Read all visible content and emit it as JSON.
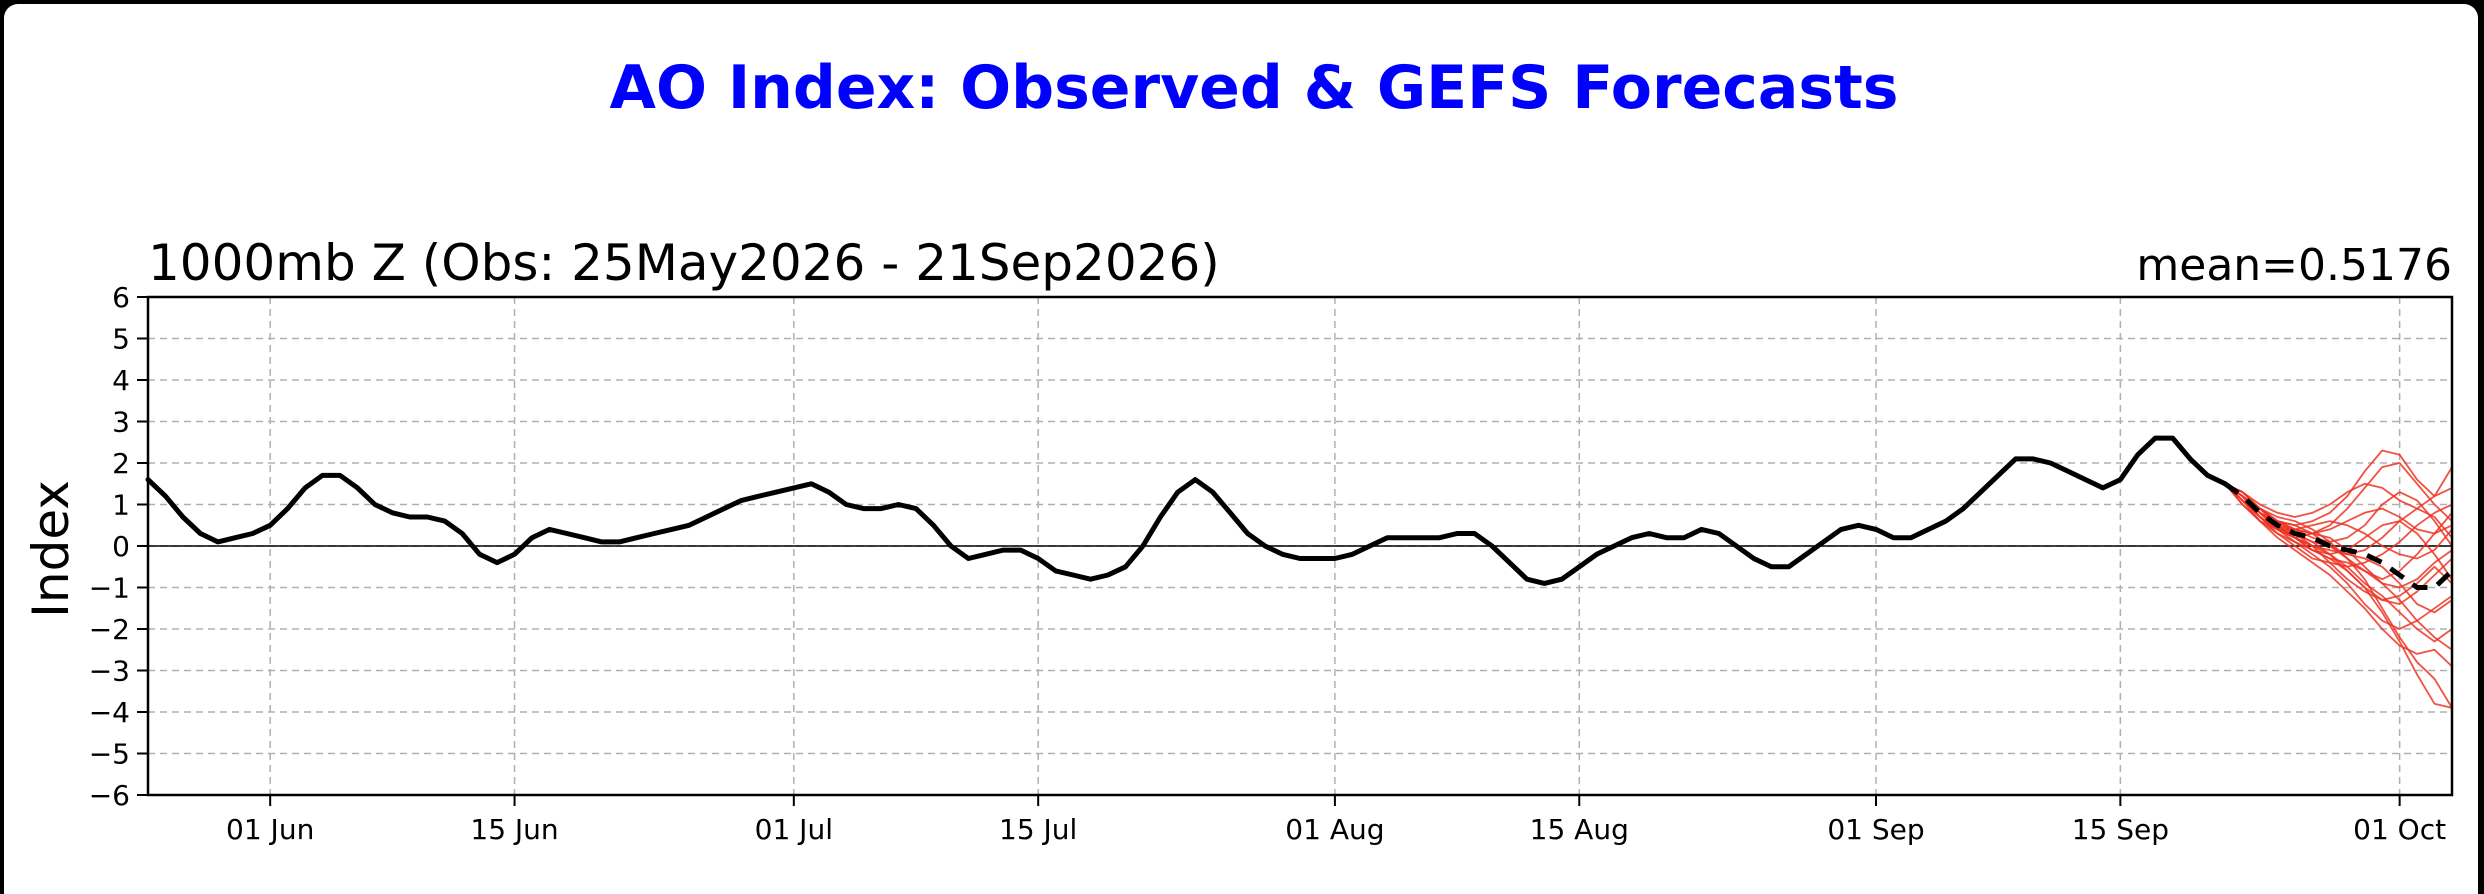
{
  "page": {
    "title": "AO Index: Observed & GEFS Forecasts",
    "title_color": "#0000ff"
  },
  "chart_data": {
    "type": "line",
    "subtitle_left": "1000mb Z (Obs: 25May2026 - 21Sep2026)",
    "subtitle_right": "mean=0.5176",
    "xlabel": "",
    "ylabel": "Index",
    "xlim": [
      "2026-05-25",
      "2026-10-04"
    ],
    "ylim": [
      -6,
      6
    ],
    "x_ticks": [
      {
        "date": "2026-06-01",
        "label": "01 Jun"
      },
      {
        "date": "2026-06-15",
        "label": "15 Jun"
      },
      {
        "date": "2026-07-01",
        "label": "01 Jul"
      },
      {
        "date": "2026-07-15",
        "label": "15 Jul"
      },
      {
        "date": "2026-08-01",
        "label": "01 Aug"
      },
      {
        "date": "2026-08-15",
        "label": "15 Aug"
      },
      {
        "date": "2026-09-01",
        "label": "01 Sep"
      },
      {
        "date": "2026-09-15",
        "label": "15 Sep"
      },
      {
        "date": "2026-10-01",
        "label": "01 Oct"
      }
    ],
    "y_ticks": [
      6,
      5,
      4,
      3,
      2,
      1,
      0,
      -1,
      -2,
      -3,
      -4,
      -5,
      -6
    ],
    "y_tick_labels": [
      "6",
      "5",
      "4",
      "3",
      "2",
      "1",
      "0",
      "−1",
      "−2",
      "−3",
      "−4",
      "−5",
      "−6"
    ],
    "grid": true,
    "zero_line": true,
    "series": [
      {
        "style": "observed",
        "color": "#000000",
        "x": [
          "2026-05-25",
          "2026-05-26",
          "2026-05-27",
          "2026-05-28",
          "2026-05-29",
          "2026-05-30",
          "2026-05-31",
          "2026-06-01",
          "2026-06-02",
          "2026-06-03",
          "2026-06-04",
          "2026-06-05",
          "2026-06-06",
          "2026-06-07",
          "2026-06-08",
          "2026-06-09",
          "2026-06-10",
          "2026-06-11",
          "2026-06-12",
          "2026-06-13",
          "2026-06-14",
          "2026-06-15",
          "2026-06-16",
          "2026-06-17",
          "2026-06-18",
          "2026-06-19",
          "2026-06-20",
          "2026-06-21",
          "2026-06-22",
          "2026-06-23",
          "2026-06-24",
          "2026-06-25",
          "2026-06-26",
          "2026-06-27",
          "2026-06-28",
          "2026-06-29",
          "2026-06-30",
          "2026-07-01",
          "2026-07-02",
          "2026-07-03",
          "2026-07-04",
          "2026-07-05",
          "2026-07-06",
          "2026-07-07",
          "2026-07-08",
          "2026-07-09",
          "2026-07-10",
          "2026-07-11",
          "2026-07-12",
          "2026-07-13",
          "2026-07-14",
          "2026-07-15",
          "2026-07-16",
          "2026-07-17",
          "2026-07-18",
          "2026-07-19",
          "2026-07-20",
          "2026-07-21",
          "2026-07-22",
          "2026-07-23",
          "2026-07-24",
          "2026-07-25",
          "2026-07-26",
          "2026-07-27",
          "2026-07-28",
          "2026-07-29",
          "2026-07-30",
          "2026-07-31",
          "2026-08-01",
          "2026-08-02",
          "2026-08-03",
          "2026-08-04",
          "2026-08-05",
          "2026-08-06",
          "2026-08-07",
          "2026-08-08",
          "2026-08-09",
          "2026-08-10",
          "2026-08-11",
          "2026-08-12",
          "2026-08-13",
          "2026-08-14",
          "2026-08-15",
          "2026-08-16",
          "2026-08-17",
          "2026-08-18",
          "2026-08-19",
          "2026-08-20",
          "2026-08-21",
          "2026-08-22",
          "2026-08-23",
          "2026-08-24",
          "2026-08-25",
          "2026-08-26",
          "2026-08-27",
          "2026-08-28",
          "2026-08-29",
          "2026-08-30",
          "2026-08-31",
          "2026-09-01",
          "2026-09-02",
          "2026-09-03",
          "2026-09-04",
          "2026-09-05",
          "2026-09-06",
          "2026-09-07",
          "2026-09-08",
          "2026-09-09",
          "2026-09-10",
          "2026-09-11",
          "2026-09-12",
          "2026-09-13",
          "2026-09-14",
          "2026-09-15",
          "2026-09-16",
          "2026-09-17",
          "2026-09-18",
          "2026-09-19",
          "2026-09-20",
          "2026-09-21"
        ],
        "values": [
          1.6,
          1.2,
          0.7,
          0.3,
          0.1,
          0.2,
          0.3,
          0.5,
          0.9,
          1.4,
          1.7,
          1.7,
          1.4,
          1.0,
          0.8,
          0.7,
          0.7,
          0.6,
          0.3,
          -0.2,
          -0.4,
          -0.2,
          0.2,
          0.4,
          0.3,
          0.2,
          0.1,
          0.1,
          0.2,
          0.3,
          0.4,
          0.5,
          0.7,
          0.9,
          1.1,
          1.2,
          1.3,
          1.4,
          1.5,
          1.3,
          1.0,
          0.9,
          0.9,
          1.0,
          0.9,
          0.5,
          0.0,
          -0.3,
          -0.2,
          -0.1,
          -0.1,
          -0.3,
          -0.6,
          -0.7,
          -0.8,
          -0.7,
          -0.5,
          0.0,
          0.7,
          1.3,
          1.6,
          1.3,
          0.8,
          0.3,
          0.0,
          -0.2,
          -0.3,
          -0.3,
          -0.3,
          -0.2,
          0.0,
          0.2,
          0.2,
          0.2,
          0.2,
          0.3,
          0.3,
          0.0,
          -0.4,
          -0.8,
          -0.9,
          -0.8,
          -0.5,
          -0.2,
          0.0,
          0.2,
          0.3,
          0.2,
          0.2,
          0.4,
          0.3,
          0.0,
          -0.3,
          -0.5,
          -0.5,
          -0.2,
          0.1,
          0.4,
          0.5,
          0.4,
          0.2,
          0.2,
          0.4,
          0.6,
          0.9,
          1.3,
          1.7,
          2.1,
          2.1,
          2.0,
          1.8,
          1.6,
          1.4,
          1.6,
          2.2,
          2.6,
          2.6,
          2.1,
          1.7,
          1.5
        ]
      },
      {
        "style": "ensemble-mean",
        "color": "#000000",
        "x": [
          "2026-09-21",
          "2026-09-22",
          "2026-09-23",
          "2026-09-24",
          "2026-09-25",
          "2026-09-26",
          "2026-09-27",
          "2026-09-28",
          "2026-09-29",
          "2026-09-30",
          "2026-10-01",
          "2026-10-02",
          "2026-10-03",
          "2026-10-04"
        ],
        "values": [
          1.5,
          1.2,
          0.8,
          0.5,
          0.3,
          0.2,
          0.0,
          -0.1,
          -0.2,
          -0.4,
          -0.7,
          -1.0,
          -1.0,
          -0.6
        ]
      }
    ],
    "ensemble": {
      "color": "#ee3322",
      "x": [
        "2026-09-21",
        "2026-09-22",
        "2026-09-23",
        "2026-09-24",
        "2026-09-25",
        "2026-09-26",
        "2026-09-27",
        "2026-09-28",
        "2026-09-29",
        "2026-09-30",
        "2026-10-01",
        "2026-10-02",
        "2026-10-03",
        "2026-10-04"
      ],
      "members": [
        [
          1.5,
          1.3,
          0.9,
          0.6,
          0.5,
          0.6,
          0.8,
          1.2,
          1.8,
          2.3,
          2.2,
          1.6,
          1.2,
          1.4
        ],
        [
          1.5,
          1.2,
          0.8,
          0.5,
          0.3,
          0.1,
          0.0,
          -0.3,
          -0.8,
          -1.5,
          -2.2,
          -2.8,
          -3.2,
          -3.9
        ],
        [
          1.5,
          1.1,
          0.7,
          0.4,
          0.2,
          0.3,
          0.5,
          0.9,
          1.4,
          1.9,
          2.0,
          1.5,
          1.0,
          0.6
        ],
        [
          1.5,
          1.2,
          0.9,
          0.7,
          0.6,
          0.4,
          0.1,
          -0.3,
          -0.6,
          -0.8,
          -0.6,
          -0.2,
          0.3,
          0.8
        ],
        [
          1.5,
          1.0,
          0.6,
          0.3,
          0.1,
          -0.2,
          -0.5,
          -0.9,
          -1.4,
          -1.8,
          -2.0,
          -1.8,
          -1.5,
          -1.2
        ],
        [
          1.5,
          1.3,
          1.0,
          0.8,
          0.7,
          0.8,
          1.0,
          1.3,
          1.5,
          1.4,
          1.1,
          0.9,
          1.2,
          1.9
        ],
        [
          1.5,
          1.1,
          0.6,
          0.2,
          -0.1,
          -0.4,
          -0.7,
          -1.1,
          -1.5,
          -2.0,
          -2.4,
          -2.6,
          -2.5,
          -2.9
        ],
        [
          1.5,
          1.2,
          0.8,
          0.4,
          0.2,
          0.0,
          -0.1,
          -0.2,
          -0.3,
          -0.5,
          -0.9,
          -1.4,
          -1.6,
          -1.3
        ],
        [
          1.5,
          1.2,
          0.9,
          0.6,
          0.4,
          0.3,
          0.4,
          0.6,
          0.8,
          0.9,
          0.7,
          0.4,
          0.3,
          0.5
        ],
        [
          1.5,
          1.1,
          0.7,
          0.3,
          0.0,
          -0.3,
          -0.4,
          -0.5,
          -0.4,
          -0.2,
          0.1,
          0.5,
          0.8,
          1.0
        ],
        [
          1.5,
          1.2,
          0.7,
          0.4,
          0.3,
          0.1,
          -0.2,
          -0.6,
          -1.0,
          -1.3,
          -1.4,
          -1.1,
          -0.7,
          -0.3
        ],
        [
          1.5,
          1.3,
          0.9,
          0.5,
          0.2,
          -0.1,
          -0.3,
          -0.6,
          -1.0,
          -1.6,
          -2.3,
          -3.1,
          -3.8,
          -3.9
        ],
        [
          1.5,
          1.1,
          0.8,
          0.6,
          0.5,
          0.3,
          0.0,
          -0.2,
          -0.1,
          0.2,
          0.6,
          0.9,
          0.7,
          0.2
        ],
        [
          1.5,
          1.2,
          0.8,
          0.4,
          0.1,
          -0.1,
          -0.3,
          -0.4,
          -0.6,
          -0.9,
          -1.3,
          -1.8,
          -2.2,
          -2.5
        ],
        [
          1.5,
          1.0,
          0.6,
          0.4,
          0.4,
          0.5,
          0.6,
          0.5,
          0.3,
          0.0,
          -0.2,
          -0.3,
          -0.1,
          0.4
        ],
        [
          1.5,
          1.2,
          0.9,
          0.6,
          0.3,
          0.0,
          -0.4,
          -0.8,
          -1.1,
          -1.3,
          -1.2,
          -0.9,
          -0.5,
          -0.9
        ],
        [
          1.5,
          1.3,
          0.9,
          0.6,
          0.4,
          0.2,
          0.1,
          0.2,
          0.5,
          1.0,
          1.3,
          1.1,
          0.6,
          0.0
        ],
        [
          1.5,
          1.1,
          0.7,
          0.4,
          0.2,
          0.0,
          -0.2,
          -0.5,
          -0.9,
          -1.2,
          -1.6,
          -2.0,
          -2.3,
          -2.0
        ],
        [
          1.5,
          1.2,
          0.8,
          0.5,
          0.4,
          0.3,
          0.2,
          -0.1,
          -0.5,
          -0.9,
          -1.0,
          -0.8,
          -0.4,
          -0.1
        ],
        [
          1.5,
          1.2,
          0.8,
          0.5,
          0.2,
          -0.1,
          -0.2,
          -0.1,
          0.2,
          0.5,
          0.6,
          0.3,
          -0.2,
          -0.8
        ]
      ]
    }
  }
}
